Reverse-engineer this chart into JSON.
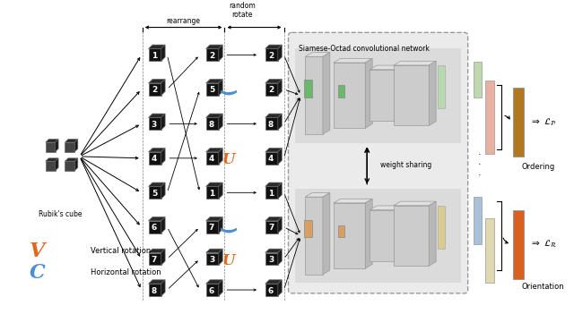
{
  "bg_color": "#ffffff",
  "fig_width": 6.4,
  "fig_height": 3.51,
  "dpi": 100,
  "rubiks_label": "Rubik's cube",
  "rearrange_label": "rearrange",
  "random_rotate_label": "random\nrotate",
  "siamese_label": "Siamese-Octad convolutional network",
  "weight_sharing_label": "weight sharing",
  "ordering_label": "Ordering",
  "orientation_label": "Orientation",
  "vertical_rotation_color": "#e06820",
  "horizontal_rotation_color": "#4a90d0",
  "legend_v_label": "   Vertical rotation",
  "legend_h_label": "   Horizontal rotation",
  "cube_color": "#111111",
  "cube_top_color": "#333333",
  "cube_right_color": "#222222"
}
